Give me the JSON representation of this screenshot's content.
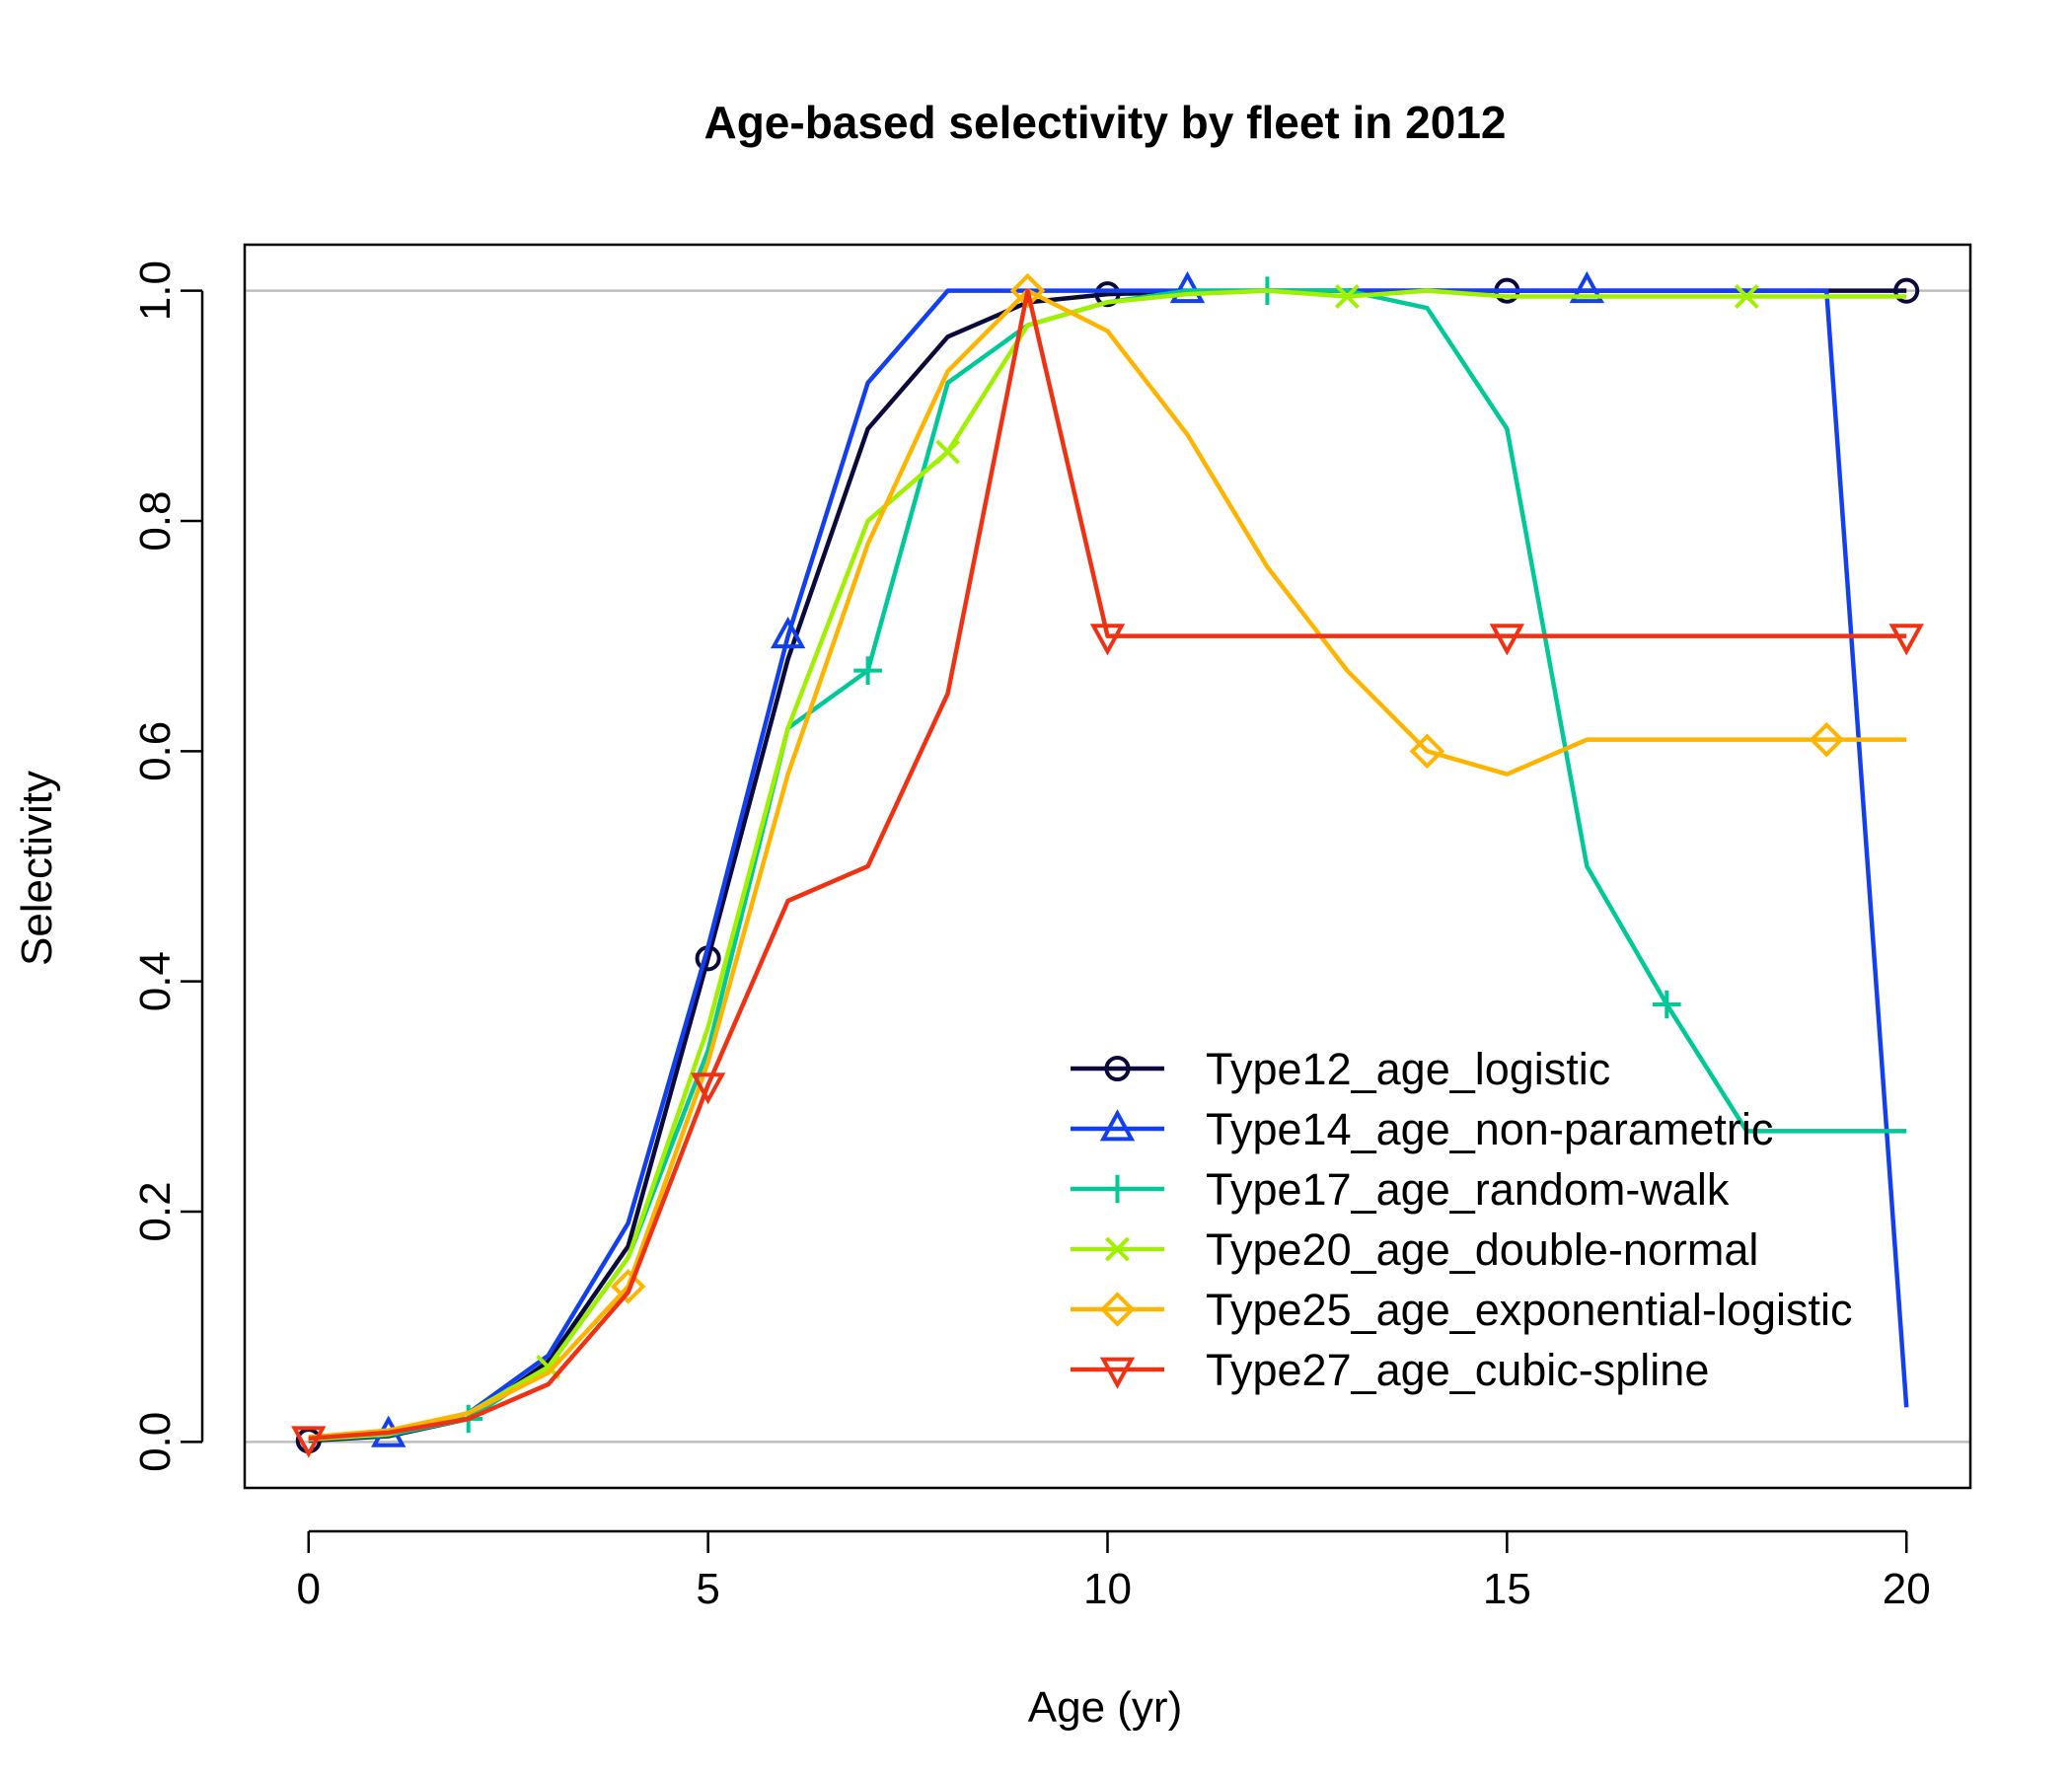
{
  "chart_data": {
    "type": "line",
    "title": "Age-based selectivity by fleet in 2012",
    "xlabel": "Age (yr)",
    "ylabel": "Selectivity",
    "xlim": [
      -0.8,
      20.8
    ],
    "ylim": [
      -0.04,
      1.04
    ],
    "xticks": [
      0,
      5,
      10,
      15,
      20
    ],
    "yticks": [
      0.0,
      0.2,
      0.4,
      0.6,
      0.8,
      1.0
    ],
    "xtick_labels": [
      "0",
      "5",
      "10",
      "15",
      "20"
    ],
    "ytick_labels": [
      "0.0",
      "0.2",
      "0.4",
      "0.6",
      "0.8",
      "1.0"
    ],
    "reference_lines": [
      0,
      1
    ],
    "legend_position": "bottom-right",
    "x": [
      0,
      1,
      2,
      3,
      4,
      5,
      6,
      7,
      8,
      9,
      10,
      11,
      12,
      13,
      14,
      15,
      16,
      17,
      18,
      19,
      20
    ],
    "series": [
      {
        "name": "Type12_age_logistic",
        "color": "#0a0a3c",
        "marker": "circle",
        "marker_every": 5,
        "marker_offset": 0,
        "values": [
          0.001,
          0.005,
          0.02,
          0.07,
          0.17,
          0.42,
          0.68,
          0.88,
          0.96,
          0.99,
          0.997,
          0.999,
          1.0,
          1.0,
          1.0,
          1.0,
          1.0,
          1.0,
          1.0,
          1.0,
          1.0
        ]
      },
      {
        "name": "Type14_age_non-parametric",
        "color": "#1240f0",
        "marker": "triangle-up",
        "marker_every": 5,
        "marker_offset": 1,
        "values": [
          0.002,
          0.006,
          0.025,
          0.075,
          0.19,
          0.43,
          0.7,
          0.92,
          1.0,
          1.0,
          1.0,
          1.0,
          1.0,
          1.0,
          1.0,
          1.0,
          1.0,
          1.0,
          1.0,
          1.0,
          0.03
        ]
      },
      {
        "name": "Type17_age_random-walk",
        "color": "#00c896",
        "marker": "plus",
        "marker_every": 5,
        "marker_offset": 2,
        "values": [
          0.002,
          0.006,
          0.02,
          0.065,
          0.16,
          0.34,
          0.62,
          0.67,
          0.92,
          0.97,
          0.99,
          1.0,
          1.0,
          1.0,
          0.985,
          0.88,
          0.5,
          0.38,
          0.27,
          0.27,
          0.27
        ]
      },
      {
        "name": "Type20_age_double-normal",
        "color": "#a0f000",
        "marker": "cross",
        "marker_every": 5,
        "marker_offset": 3,
        "values": [
          0.002,
          0.007,
          0.025,
          0.065,
          0.16,
          0.36,
          0.62,
          0.8,
          0.86,
          0.97,
          0.99,
          0.997,
          1.0,
          0.995,
          1.0,
          0.995,
          0.995,
          0.995,
          0.995,
          0.995,
          0.995
        ]
      },
      {
        "name": "Type25_age_exponential-logistic",
        "color": "#ffb400",
        "marker": "diamond",
        "marker_every": 5,
        "marker_offset": 4,
        "values": [
          0.004,
          0.01,
          0.025,
          0.06,
          0.135,
          0.33,
          0.58,
          0.78,
          0.93,
          1.0,
          0.965,
          0.875,
          0.76,
          0.67,
          0.6,
          0.58,
          0.61,
          0.61,
          0.61,
          0.61,
          0.61
        ]
      },
      {
        "name": "Type27_age_cubic-spline",
        "color": "#f03214",
        "marker": "triangle-down",
        "marker_every": 5,
        "marker_offset": 0,
        "values": [
          0.003,
          0.008,
          0.02,
          0.05,
          0.13,
          0.31,
          0.47,
          0.5,
          0.65,
          1.0,
          0.7,
          0.7,
          0.7,
          0.7,
          0.7,
          0.7,
          0.7,
          0.7,
          0.7,
          0.7,
          0.7
        ]
      }
    ]
  }
}
